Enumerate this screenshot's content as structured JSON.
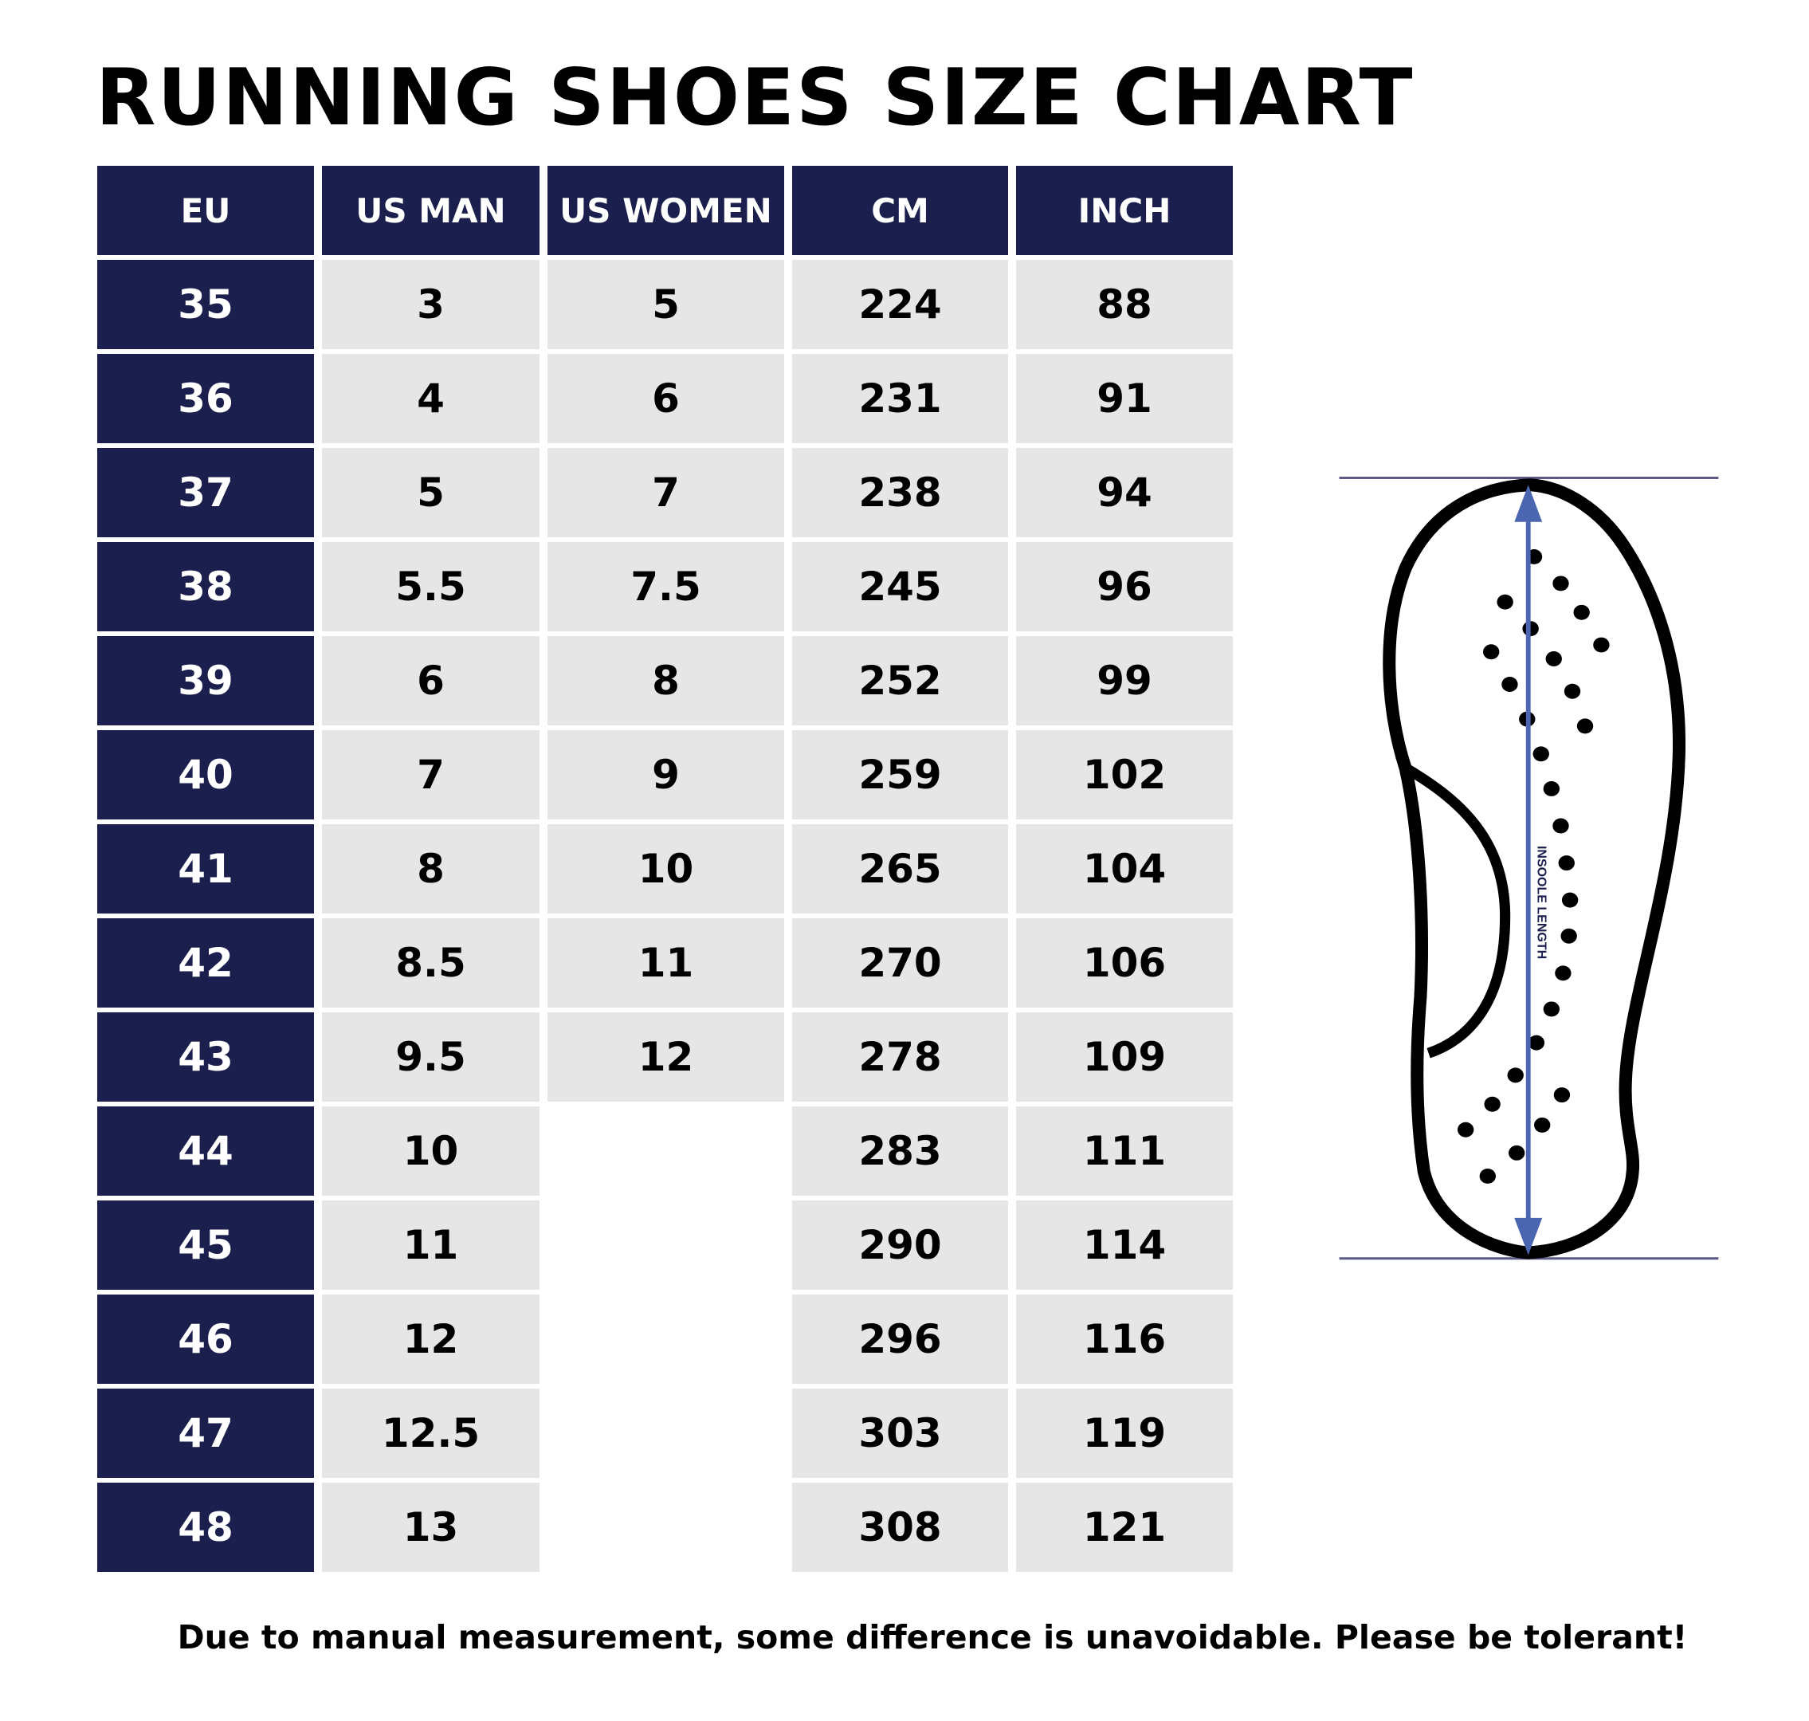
{
  "title": "RUNNING SHOES SIZE CHART",
  "headers": [
    "EU",
    "US MAN",
    "US WOMEN",
    "CM",
    "INCH"
  ],
  "rows": [
    [
      "35",
      "3",
      "5",
      "224",
      "88"
    ],
    [
      "36",
      "4",
      "6",
      "231",
      "91"
    ],
    [
      "37",
      "5",
      "7",
      "238",
      "94"
    ],
    [
      "38",
      "5.5",
      "7.5",
      "245",
      "96"
    ],
    [
      "39",
      "6",
      "8",
      "252",
      "99"
    ],
    [
      "40",
      "7",
      "9",
      "259",
      "102"
    ],
    [
      "41",
      "8",
      "10",
      "265",
      "104"
    ],
    [
      "42",
      "8.5",
      "11",
      "270",
      "106"
    ],
    [
      "43",
      "9.5",
      "12",
      "278",
      "109"
    ],
    [
      "44",
      "10",
      "",
      "283",
      "111"
    ],
    [
      "45",
      "11",
      "",
      "290",
      "114"
    ],
    [
      "46",
      "12",
      "",
      "296",
      "116"
    ],
    [
      "47",
      "12.5",
      "",
      "303",
      "119"
    ],
    [
      "48",
      "13",
      "",
      "308",
      "121"
    ]
  ],
  "diagram": {
    "label": "INSOOLE LENGTH"
  },
  "footer": "Due to manual measurement, some difference is unavoidable. Please be tolerant!",
  "colors": {
    "navy": "#1b1f4d",
    "accent_blue": "#4a66b0",
    "cell_gray": "#e6e6e6"
  }
}
